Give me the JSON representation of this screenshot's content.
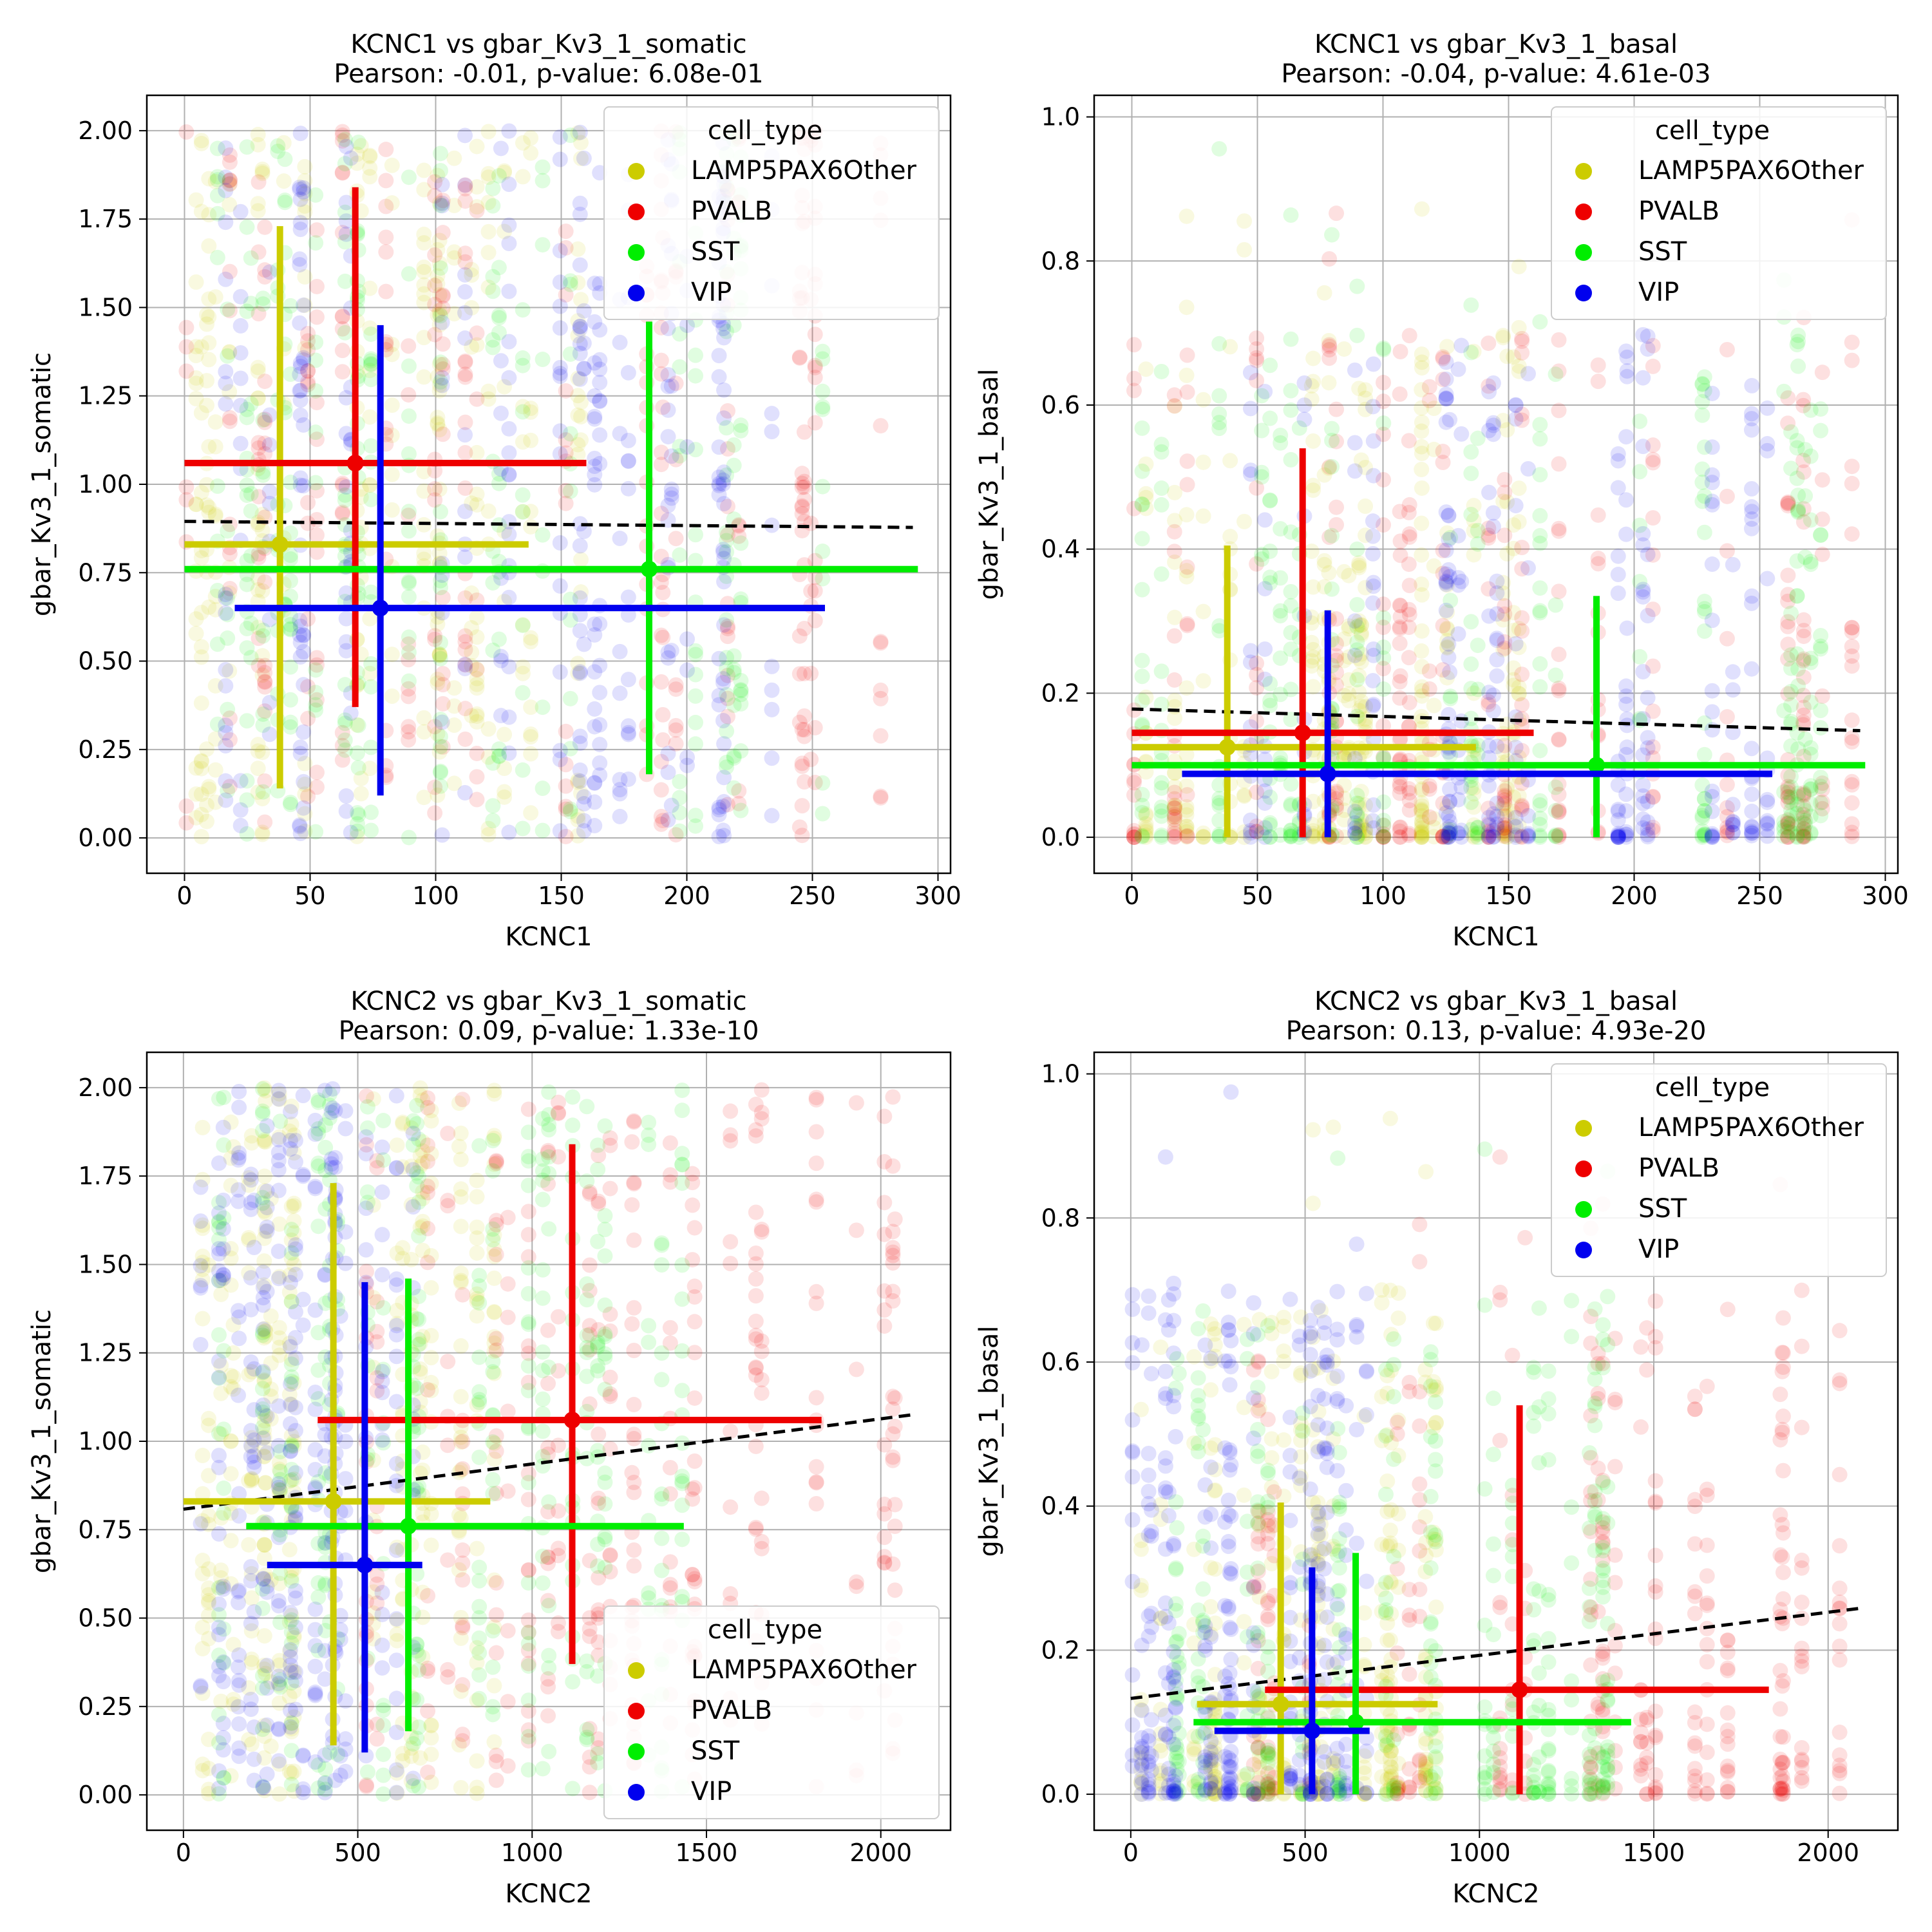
{
  "colors": {
    "LAMP5PAX6Other": "#cccc00",
    "PVALB": "#ee0000",
    "SST": "#00ee00",
    "VIP": "#0000ee",
    "fit": "#000000",
    "grid": "#b0b0b0"
  },
  "chart_data": [
    {
      "type": "scatter",
      "title": "KCNC1 vs gbar_Kv3_1_somatic",
      "subtitle": "Pearson: -0.01, p-value: 6.08e-01",
      "xlabel": "KCNC1",
      "ylabel": "gbar_Kv3_1_somatic",
      "xlim": [
        -15,
        305
      ],
      "ylim": [
        -0.1,
        2.1
      ],
      "xticks": [
        0,
        50,
        100,
        150,
        200,
        250,
        300
      ],
      "yticks": [
        0.0,
        0.25,
        0.5,
        0.75,
        1.0,
        1.25,
        1.5,
        1.75,
        2.0
      ],
      "ytick_labels": [
        "0.00",
        "0.25",
        "0.50",
        "0.75",
        "1.00",
        "1.25",
        "1.50",
        "1.75",
        "2.00"
      ],
      "grid": true,
      "legend": {
        "title": "cell_type",
        "placement": "upper right"
      },
      "fit_line": {
        "x": [
          0,
          290
        ],
        "y": [
          0.895,
          0.878
        ]
      },
      "series": [
        {
          "name": "LAMP5PAX6Other",
          "x_range": [
            0,
            160
          ],
          "mean_x": 38,
          "x_err": [
            0,
            137
          ],
          "mean_y": 0.83,
          "y_err": [
            0.14,
            1.73
          ]
        },
        {
          "name": "PVALB",
          "x_range": [
            0,
            290
          ],
          "mean_x": 68,
          "x_err": [
            0,
            160
          ],
          "mean_y": 1.06,
          "y_err": [
            0.37,
            1.84
          ]
        },
        {
          "name": "SST",
          "x_range": [
            0,
            290
          ],
          "mean_x": 185,
          "x_err": [
            0,
            292
          ],
          "mean_y": 0.76,
          "y_err": [
            0.18,
            1.46
          ]
        },
        {
          "name": "VIP",
          "x_range": [
            15,
            265
          ],
          "mean_x": 78,
          "x_err": [
            20,
            255
          ],
          "mean_y": 0.65,
          "y_err": [
            0.12,
            1.45
          ]
        }
      ]
    },
    {
      "type": "scatter",
      "title": "KCNC1 vs gbar_Kv3_1_basal",
      "subtitle": "Pearson: -0.04, p-value: 4.61e-03",
      "xlabel": "KCNC1",
      "ylabel": "gbar_Kv3_1_basal",
      "xlim": [
        -15,
        305
      ],
      "ylim": [
        -0.05,
        1.03
      ],
      "xticks": [
        0,
        50,
        100,
        150,
        200,
        250,
        300
      ],
      "yticks": [
        0.0,
        0.2,
        0.4,
        0.6,
        0.8,
        1.0
      ],
      "ytick_labels": [
        "0.0",
        "0.2",
        "0.4",
        "0.6",
        "0.8",
        "1.0"
      ],
      "grid": true,
      "legend": {
        "title": "cell_type",
        "placement": "upper right"
      },
      "fit_line": {
        "x": [
          0,
          290
        ],
        "y": [
          0.178,
          0.148
        ]
      },
      "series": [
        {
          "name": "LAMP5PAX6Other",
          "x_range": [
            0,
            160
          ],
          "mean_x": 38,
          "x_err": [
            0,
            137
          ],
          "mean_y": 0.125,
          "y_err": [
            0.0,
            0.405
          ]
        },
        {
          "name": "PVALB",
          "x_range": [
            0,
            290
          ],
          "mean_x": 68,
          "x_err": [
            0,
            160
          ],
          "mean_y": 0.145,
          "y_err": [
            0.0,
            0.54
          ]
        },
        {
          "name": "SST",
          "x_range": [
            0,
            290
          ],
          "mean_x": 185,
          "x_err": [
            0,
            292
          ],
          "mean_y": 0.1,
          "y_err": [
            0.0,
            0.335
          ]
        },
        {
          "name": "VIP",
          "x_range": [
            15,
            265
          ],
          "mean_x": 78,
          "x_err": [
            20,
            255
          ],
          "mean_y": 0.088,
          "y_err": [
            0.0,
            0.315
          ]
        }
      ]
    },
    {
      "type": "scatter",
      "title": "KCNC2 vs gbar_Kv3_1_somatic",
      "subtitle": "Pearson: 0.09, p-value: 1.33e-10",
      "xlabel": "KCNC2",
      "ylabel": "gbar_Kv3_1_somatic",
      "xlim": [
        -105,
        2200
      ],
      "ylim": [
        -0.1,
        2.1
      ],
      "xticks": [
        0,
        500,
        1000,
        1500,
        2000
      ],
      "yticks": [
        0.0,
        0.25,
        0.5,
        0.75,
        1.0,
        1.25,
        1.5,
        1.75,
        2.0
      ],
      "ytick_labels": [
        "0.00",
        "0.25",
        "0.50",
        "0.75",
        "1.00",
        "1.25",
        "1.50",
        "1.75",
        "2.00"
      ],
      "grid": true,
      "legend": {
        "title": "cell_type",
        "placement": "lower right"
      },
      "fit_line": {
        "x": [
          0,
          2090
        ],
        "y": [
          0.808,
          1.075
        ]
      },
      "series": [
        {
          "name": "LAMP5PAX6Other",
          "x_range": [
            0,
            900
          ],
          "mean_x": 430,
          "x_err": [
            0,
            880
          ],
          "mean_y": 0.83,
          "y_err": [
            0.14,
            1.73
          ]
        },
        {
          "name": "PVALB",
          "x_range": [
            250,
            2100
          ],
          "mean_x": 1115,
          "x_err": [
            385,
            1830
          ],
          "mean_y": 1.06,
          "y_err": [
            0.37,
            1.84
          ]
        },
        {
          "name": "SST",
          "x_range": [
            100,
            1450
          ],
          "mean_x": 645,
          "x_err": [
            180,
            1435
          ],
          "mean_y": 0.76,
          "y_err": [
            0.18,
            1.46
          ]
        },
        {
          "name": "VIP",
          "x_range": [
            0,
            700
          ],
          "mean_x": 520,
          "x_err": [
            240,
            685
          ],
          "mean_y": 0.65,
          "y_err": [
            0.12,
            1.45
          ]
        }
      ]
    },
    {
      "type": "scatter",
      "title": "KCNC2 vs gbar_Kv3_1_basal",
      "subtitle": "Pearson: 0.13, p-value: 4.93e-20",
      "xlabel": "KCNC2",
      "ylabel": "gbar_Kv3_1_basal",
      "xlim": [
        -105,
        2200
      ],
      "ylim": [
        -0.05,
        1.03
      ],
      "xticks": [
        0,
        500,
        1000,
        1500,
        2000
      ],
      "yticks": [
        0.0,
        0.2,
        0.4,
        0.6,
        0.8,
        1.0
      ],
      "ytick_labels": [
        "0.0",
        "0.2",
        "0.4",
        "0.6",
        "0.8",
        "1.0"
      ],
      "grid": true,
      "legend": {
        "title": "cell_type",
        "placement": "upper right"
      },
      "fit_line": {
        "x": [
          0,
          2090
        ],
        "y": [
          0.133,
          0.258
        ]
      },
      "series": [
        {
          "name": "LAMP5PAX6Other",
          "x_range": [
            0,
            900
          ],
          "mean_x": 430,
          "x_err": [
            190,
            880
          ],
          "mean_y": 0.125,
          "y_err": [
            0.0,
            0.405
          ]
        },
        {
          "name": "PVALB",
          "x_range": [
            250,
            2100
          ],
          "mean_x": 1115,
          "x_err": [
            385,
            1830
          ],
          "mean_y": 0.145,
          "y_err": [
            0.0,
            0.54
          ]
        },
        {
          "name": "SST",
          "x_range": [
            100,
            1450
          ],
          "mean_x": 645,
          "x_err": [
            180,
            1435
          ],
          "mean_y": 0.1,
          "y_err": [
            0.0,
            0.335
          ]
        },
        {
          "name": "VIP",
          "x_range": [
            0,
            700
          ],
          "mean_x": 520,
          "x_err": [
            240,
            685
          ],
          "mean_y": 0.088,
          "y_err": [
            0.0,
            0.315
          ]
        }
      ]
    }
  ]
}
